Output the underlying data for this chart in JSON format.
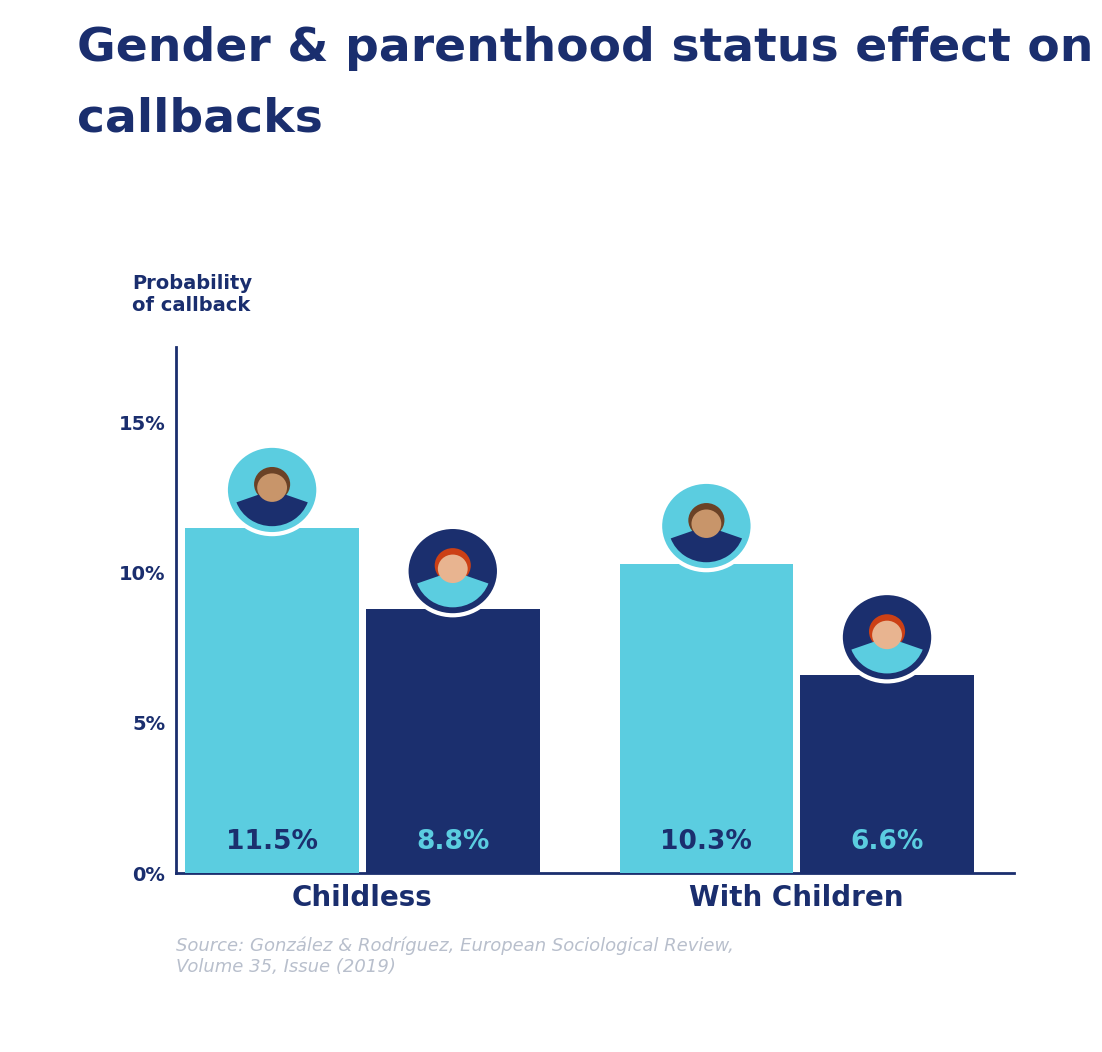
{
  "title_line1": "Gender & parenthood status effect on",
  "title_line2": "callbacks",
  "title_color": "#1a2e6e",
  "title_fontsize": 34,
  "ylabel_line1": "Probability",
  "ylabel_line2": "of callback",
  "ylabel_color": "#1a2e6e",
  "ylabel_fontsize": 14,
  "categories": [
    "Childless",
    "With Children"
  ],
  "category_fontsize": 20,
  "category_color": "#1a2e6e",
  "values_male": [
    11.5,
    10.3
  ],
  "values_female": [
    8.8,
    6.6
  ],
  "color_male": "#5bcde0",
  "color_female": "#1b2f6e",
  "bar_label_color_male": "#1b2f6e",
  "bar_label_color_female": "#5bcde0",
  "bar_label_fontsize": 19,
  "yticks": [
    0,
    5,
    10,
    15
  ],
  "ylim": [
    0,
    17.5
  ],
  "axis_color": "#1a2e6e",
  "tick_color": "#1a2e6e",
  "tick_fontsize": 14,
  "source_text": "Source: González & Rodríguez, European Sociological Review,\nVolume 35, Issue (2019)",
  "source_color": "#b8bfcc",
  "source_fontsize": 13,
  "background_color": "#ffffff",
  "bar_width": 0.28,
  "group_positions": [
    0.3,
    1.0
  ]
}
